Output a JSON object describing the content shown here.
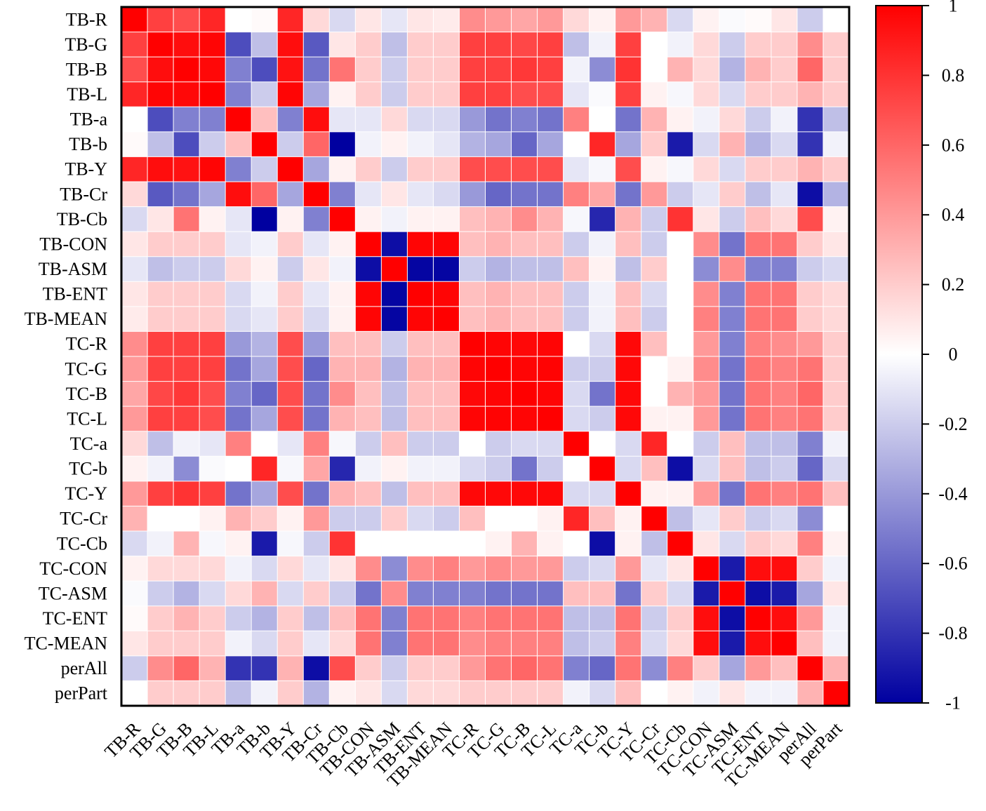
{
  "chart_data": {
    "type": "heatmap",
    "title": "",
    "labels": [
      "TB-R",
      "TB-G",
      "TB-B",
      "TB-L",
      "TB-a",
      "TB-b",
      "TB-Y",
      "TB-Cr",
      "TB-Cb",
      "TB-CON",
      "TB-ASM",
      "TB-ENT",
      "TB-MEAN",
      "TC-R",
      "TC-G",
      "TC-B",
      "TC-L",
      "TC-a",
      "TC-b",
      "TC-Y",
      "TC-Cr",
      "TC-Cb",
      "TC-CON",
      "TC-ASM",
      "TC-ENT",
      "TC-MEAN",
      "perAll",
      "perPart"
    ],
    "colorbar": {
      "min": -1,
      "max": 1,
      "ticks": [
        1,
        0.8,
        0.6,
        0.4,
        0.2,
        0,
        -0.2,
        -0.4,
        -0.6,
        -0.8,
        -1
      ],
      "tick_labels": [
        "1",
        "0.8",
        "0.6",
        "0.4",
        "0.2",
        "0",
        "-0.2",
        "-0.4",
        "-0.6",
        "-0.8",
        "-1"
      ],
      "low_color": "#0000a0",
      "mid_color": "#ffffff",
      "high_color": "#ff0000"
    },
    "matrix": [
      [
        1.0,
        0.75,
        0.7,
        0.85,
        0.0,
        0.02,
        0.85,
        0.15,
        -0.15,
        0.1,
        -0.1,
        0.1,
        0.08,
        0.45,
        0.4,
        0.35,
        0.4,
        0.15,
        0.05,
        0.4,
        0.3,
        -0.15,
        0.05,
        -0.02,
        0.02,
        0.1,
        -0.2,
        0.0
      ],
      [
        0.75,
        1.0,
        0.95,
        0.98,
        -0.7,
        -0.25,
        0.95,
        -0.65,
        0.1,
        0.2,
        -0.25,
        0.2,
        0.2,
        0.75,
        0.75,
        0.72,
        0.75,
        -0.25,
        -0.05,
        0.75,
        0.0,
        -0.05,
        0.15,
        -0.2,
        0.2,
        0.2,
        0.45,
        0.2
      ],
      [
        0.7,
        0.95,
        1.0,
        0.97,
        -0.5,
        -0.7,
        0.93,
        -0.55,
        0.55,
        0.2,
        -0.2,
        0.2,
        0.2,
        0.75,
        0.75,
        0.78,
        0.75,
        -0.05,
        -0.45,
        0.8,
        0.0,
        0.3,
        0.15,
        -0.3,
        0.3,
        0.2,
        0.6,
        0.2
      ],
      [
        0.85,
        0.98,
        0.97,
        1.0,
        -0.5,
        -0.2,
        0.98,
        -0.35,
        0.05,
        0.2,
        -0.2,
        0.2,
        0.2,
        0.75,
        0.75,
        0.7,
        0.7,
        -0.1,
        -0.02,
        0.75,
        0.05,
        -0.03,
        0.15,
        -0.15,
        0.2,
        0.2,
        0.3,
        0.2
      ],
      [
        0.0,
        -0.7,
        -0.5,
        -0.5,
        1.0,
        0.25,
        -0.5,
        0.95,
        -0.1,
        -0.1,
        0.15,
        -0.15,
        -0.15,
        -0.4,
        -0.55,
        -0.5,
        -0.55,
        0.5,
        0.0,
        -0.55,
        0.3,
        0.05,
        -0.05,
        0.15,
        -0.2,
        -0.05,
        -0.8,
        -0.25
      ],
      [
        0.02,
        -0.25,
        -0.7,
        -0.2,
        0.25,
        1.0,
        -0.2,
        0.6,
        -1.0,
        -0.05,
        0.05,
        -0.05,
        -0.1,
        -0.3,
        -0.35,
        -0.6,
        -0.35,
        0.0,
        0.85,
        -0.35,
        0.2,
        -0.9,
        -0.15,
        0.3,
        -0.3,
        -0.15,
        -0.8,
        -0.05
      ],
      [
        0.85,
        0.95,
        0.93,
        0.98,
        -0.5,
        -0.2,
        1.0,
        -0.35,
        0.05,
        0.2,
        -0.2,
        0.2,
        0.2,
        0.7,
        0.7,
        0.7,
        0.7,
        -0.1,
        -0.03,
        0.7,
        0.05,
        -0.03,
        0.15,
        -0.15,
        0.2,
        0.2,
        0.3,
        0.2
      ],
      [
        0.15,
        -0.65,
        -0.55,
        -0.35,
        0.95,
        0.6,
        -0.35,
        1.0,
        -0.5,
        -0.1,
        0.1,
        -0.1,
        -0.15,
        -0.4,
        -0.6,
        -0.55,
        -0.55,
        0.5,
        0.35,
        -0.55,
        0.4,
        -0.2,
        -0.1,
        0.2,
        -0.25,
        -0.1,
        -0.95,
        -0.3
      ],
      [
        -0.15,
        0.1,
        0.55,
        0.05,
        -0.1,
        -1.0,
        0.05,
        -0.5,
        1.0,
        0.05,
        -0.05,
        0.05,
        0.05,
        0.25,
        0.3,
        0.45,
        0.3,
        -0.03,
        -0.85,
        0.3,
        -0.2,
        0.8,
        0.1,
        -0.2,
        0.25,
        0.15,
        0.7,
        0.05
      ],
      [
        0.1,
        0.2,
        0.2,
        0.2,
        -0.1,
        -0.05,
        0.2,
        -0.1,
        0.05,
        1.0,
        -0.95,
        0.98,
        0.98,
        0.25,
        0.3,
        0.25,
        0.25,
        -0.2,
        -0.05,
        0.25,
        -0.2,
        0.0,
        0.45,
        -0.55,
        0.55,
        0.55,
        0.2,
        0.1
      ],
      [
        -0.1,
        -0.25,
        -0.2,
        -0.2,
        0.15,
        0.05,
        -0.2,
        0.1,
        -0.05,
        -0.95,
        1.0,
        -0.98,
        -0.98,
        -0.2,
        -0.3,
        -0.25,
        -0.25,
        0.25,
        0.05,
        -0.25,
        0.2,
        0.0,
        -0.45,
        0.45,
        -0.5,
        -0.5,
        -0.2,
        -0.15
      ],
      [
        0.1,
        0.2,
        0.2,
        0.2,
        -0.15,
        -0.05,
        0.2,
        -0.1,
        0.05,
        0.98,
        -0.98,
        1.0,
        0.98,
        0.25,
        0.3,
        0.25,
        0.25,
        -0.2,
        -0.05,
        0.25,
        -0.15,
        0.0,
        0.45,
        -0.5,
        0.55,
        0.55,
        0.2,
        0.15
      ],
      [
        0.08,
        0.2,
        0.2,
        0.2,
        -0.15,
        -0.1,
        0.2,
        -0.15,
        0.05,
        0.98,
        -0.98,
        0.98,
        1.0,
        0.25,
        0.3,
        0.25,
        0.25,
        -0.2,
        -0.05,
        0.25,
        -0.2,
        0.0,
        0.5,
        -0.5,
        0.55,
        0.55,
        0.2,
        0.15
      ],
      [
        0.45,
        0.75,
        0.75,
        0.75,
        -0.4,
        -0.3,
        0.7,
        -0.4,
        0.25,
        0.25,
        -0.2,
        0.25,
        0.25,
        1.0,
        0.98,
        0.97,
        0.98,
        0.0,
        -0.15,
        0.97,
        0.25,
        0.0,
        0.4,
        -0.5,
        0.5,
        0.45,
        0.4,
        0.2
      ],
      [
        0.4,
        0.75,
        0.75,
        0.75,
        -0.55,
        -0.35,
        0.7,
        -0.6,
        0.3,
        0.3,
        -0.3,
        0.3,
        0.3,
        0.98,
        1.0,
        0.98,
        0.99,
        -0.2,
        -0.2,
        0.97,
        0.0,
        0.05,
        0.45,
        -0.55,
        0.55,
        0.5,
        0.55,
        0.2
      ],
      [
        0.35,
        0.72,
        0.78,
        0.7,
        -0.5,
        -0.6,
        0.7,
        -0.55,
        0.45,
        0.25,
        -0.25,
        0.25,
        0.25,
        0.97,
        0.98,
        1.0,
        0.98,
        -0.15,
        -0.55,
        0.97,
        0.0,
        0.3,
        0.4,
        -0.55,
        0.55,
        0.5,
        0.6,
        0.2
      ],
      [
        0.4,
        0.75,
        0.75,
        0.7,
        -0.55,
        -0.35,
        0.7,
        -0.55,
        0.3,
        0.25,
        -0.25,
        0.25,
        0.25,
        0.98,
        0.99,
        0.98,
        1.0,
        -0.15,
        -0.2,
        0.97,
        0.05,
        0.05,
        0.4,
        -0.55,
        0.55,
        0.5,
        0.55,
        0.2
      ],
      [
        0.15,
        -0.25,
        -0.05,
        -0.1,
        0.5,
        0.0,
        -0.1,
        0.5,
        -0.03,
        -0.2,
        0.25,
        -0.2,
        -0.2,
        0.0,
        -0.2,
        -0.15,
        -0.15,
        1.0,
        0.0,
        -0.15,
        0.85,
        0.0,
        -0.2,
        0.25,
        -0.25,
        -0.25,
        -0.5,
        -0.05
      ],
      [
        0.05,
        -0.05,
        -0.45,
        -0.02,
        0.0,
        0.85,
        -0.03,
        0.35,
        -0.85,
        -0.05,
        0.05,
        -0.05,
        -0.05,
        -0.15,
        -0.2,
        -0.55,
        -0.2,
        0.0,
        1.0,
        -0.15,
        0.25,
        -0.95,
        -0.15,
        0.25,
        -0.25,
        -0.2,
        -0.6,
        -0.15
      ],
      [
        0.4,
        0.75,
        0.8,
        0.75,
        -0.55,
        -0.35,
        0.7,
        -0.55,
        0.3,
        0.25,
        -0.25,
        0.25,
        0.25,
        0.97,
        0.97,
        0.97,
        0.97,
        -0.15,
        -0.15,
        1.0,
        0.05,
        0.05,
        0.4,
        -0.55,
        0.55,
        0.5,
        0.55,
        0.25
      ],
      [
        0.3,
        0.0,
        0.0,
        0.05,
        0.3,
        0.2,
        0.05,
        0.4,
        -0.2,
        -0.2,
        0.2,
        -0.15,
        -0.2,
        0.25,
        0.0,
        0.0,
        0.05,
        0.85,
        0.25,
        0.05,
        1.0,
        -0.25,
        -0.1,
        0.2,
        -0.2,
        -0.15,
        -0.45,
        0.0
      ],
      [
        -0.15,
        -0.05,
        0.3,
        -0.03,
        0.05,
        -0.9,
        -0.03,
        -0.2,
        0.8,
        0.0,
        0.0,
        0.0,
        0.0,
        0.0,
        0.05,
        0.3,
        0.05,
        0.0,
        -0.95,
        0.05,
        -0.25,
        1.0,
        0.1,
        -0.15,
        0.2,
        0.15,
        0.5,
        0.05
      ],
      [
        0.05,
        0.15,
        0.15,
        0.15,
        -0.05,
        -0.15,
        0.15,
        -0.1,
        0.1,
        0.45,
        -0.45,
        0.45,
        0.5,
        0.4,
        0.45,
        0.4,
        0.4,
        -0.2,
        -0.15,
        0.4,
        -0.1,
        0.1,
        1.0,
        -0.9,
        0.95,
        0.95,
        0.2,
        -0.05
      ],
      [
        -0.02,
        -0.2,
        -0.3,
        -0.15,
        0.15,
        0.3,
        -0.15,
        0.2,
        -0.2,
        -0.55,
        0.45,
        -0.5,
        -0.5,
        -0.5,
        -0.55,
        -0.55,
        -0.55,
        0.25,
        0.25,
        -0.55,
        0.2,
        -0.15,
        -0.9,
        1.0,
        -0.95,
        -0.9,
        -0.35,
        0.1
      ],
      [
        0.02,
        0.2,
        0.3,
        0.2,
        -0.2,
        -0.3,
        0.2,
        -0.25,
        0.25,
        0.55,
        -0.5,
        0.55,
        0.55,
        0.5,
        0.55,
        0.55,
        0.55,
        -0.25,
        -0.25,
        0.55,
        -0.2,
        0.2,
        0.95,
        -0.95,
        1.0,
        0.95,
        0.4,
        -0.05
      ],
      [
        0.1,
        0.2,
        0.2,
        0.2,
        -0.05,
        -0.15,
        0.2,
        -0.1,
        0.15,
        0.55,
        -0.5,
        0.55,
        0.55,
        0.45,
        0.5,
        0.5,
        0.5,
        -0.25,
        -0.2,
        0.5,
        -0.15,
        0.15,
        0.95,
        -0.9,
        0.95,
        1.0,
        0.25,
        -0.05
      ],
      [
        -0.2,
        0.45,
        0.6,
        0.3,
        -0.8,
        -0.8,
        0.3,
        -0.95,
        0.7,
        0.2,
        -0.2,
        0.2,
        0.2,
        0.4,
        0.55,
        0.6,
        0.55,
        -0.5,
        -0.6,
        0.55,
        -0.45,
        0.5,
        0.2,
        -0.35,
        0.4,
        0.25,
        1.0,
        0.3
      ],
      [
        0.0,
        0.2,
        0.2,
        0.2,
        -0.25,
        -0.05,
        0.2,
        -0.3,
        0.05,
        0.1,
        -0.15,
        0.15,
        0.15,
        0.2,
        0.2,
        0.2,
        0.2,
        -0.05,
        -0.15,
        0.25,
        0.0,
        0.05,
        -0.05,
        0.1,
        -0.05,
        -0.05,
        0.3,
        1.0
      ]
    ]
  }
}
